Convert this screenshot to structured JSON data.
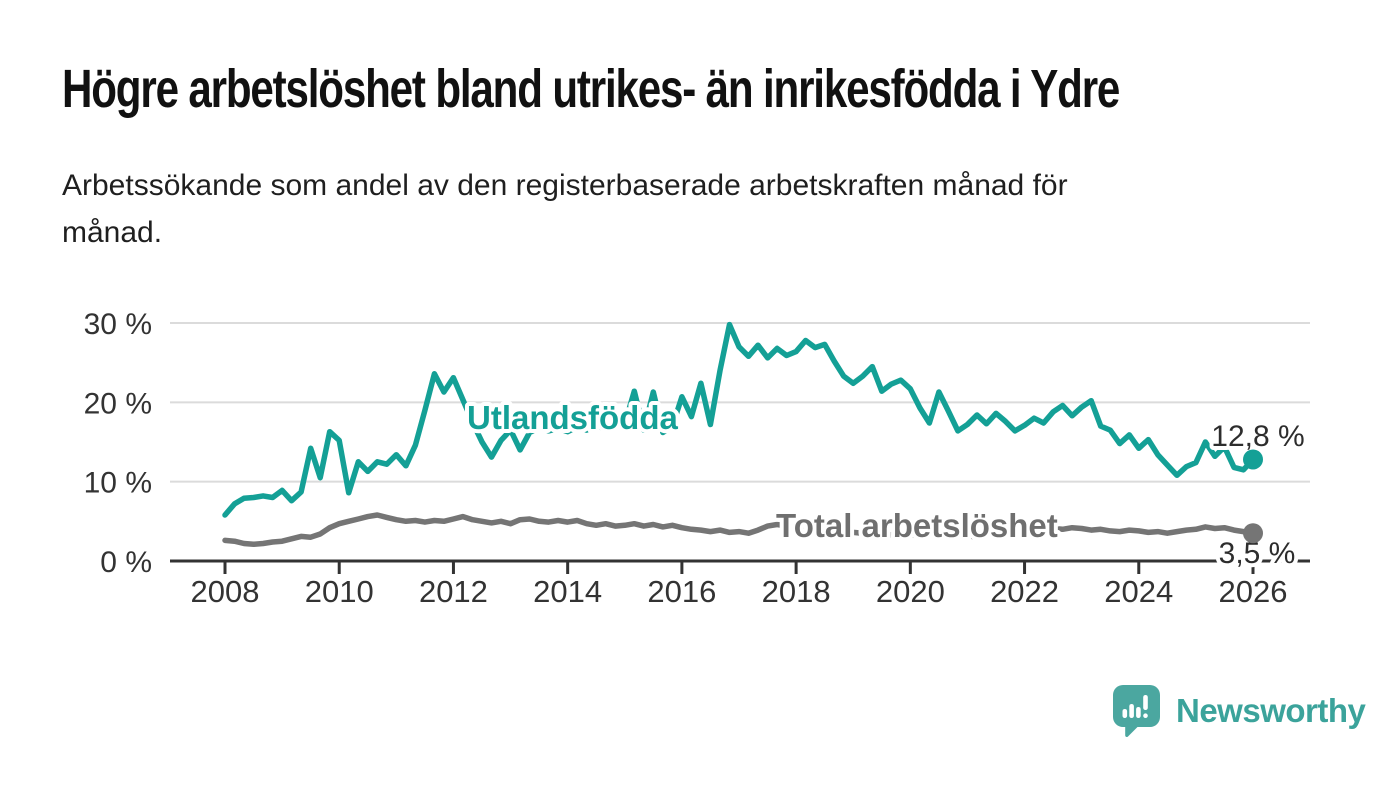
{
  "header": {
    "title": "Högre arbetslöshet bland utrikes- än inrikesfödda i Ydre",
    "subtitle_line1": "Arbetssökande som andel av den registerbaserade arbetskraften månad för",
    "subtitle_line2": "månad."
  },
  "branding": {
    "name": "Newsworthy",
    "icon": "speech-bubble-bar-chart-icon",
    "icon_color": "#4BA7A0",
    "text_color": "#3BA39B"
  },
  "chart_data": {
    "type": "line",
    "title": "Högre arbetslöshet bland utrikes- än inrikesfödda i Ydre",
    "subtitle": "Arbetssökande som andel av den registerbaserade arbetskraften månad för månad.",
    "xlabel": "",
    "ylabel": "",
    "y_unit": "%",
    "ylim": [
      0,
      30
    ],
    "y_ticks": [
      0,
      10,
      20,
      30
    ],
    "y_tick_labels": [
      "0 %",
      "10 %",
      "20 %",
      "30 %"
    ],
    "x_ticks": [
      2008,
      2010,
      2012,
      2014,
      2016,
      2018,
      2020,
      2022,
      2024,
      2026
    ],
    "x_tick_labels": [
      "2008",
      "2010",
      "2012",
      "2014",
      "2016",
      "2018",
      "2020",
      "2022",
      "2024",
      "2026"
    ],
    "grid": "horizontal",
    "legend_position": "inline-labels",
    "axis_color": "#333333",
    "grid_color": "#DBDBDB",
    "x_start": 2008,
    "x_step": 0.166667,
    "series": [
      {
        "name": "Utlandsfödda",
        "color": "#14A096",
        "end_label": "12,8 %",
        "end_value": 12.8,
        "values": [
          5.8,
          7.2,
          7.9,
          8.0,
          8.2,
          8.0,
          8.9,
          7.6,
          8.7,
          14.2,
          10.5,
          16.3,
          15.2,
          8.6,
          12.5,
          11.3,
          12.5,
          12.2,
          13.4,
          12.0,
          14.6,
          19.0,
          23.6,
          21.3,
          23.1,
          20.3,
          17.5,
          15.0,
          13.1,
          15.2,
          16.5,
          14.0,
          16.2,
          16.8,
          16.4,
          16.7,
          16.3,
          16.9,
          16.5,
          17.1,
          16.6,
          16.9,
          17.3,
          21.4,
          16.5,
          21.3,
          16.2,
          17.0,
          20.7,
          18.2,
          22.4,
          17.2,
          24.0,
          29.8,
          27.0,
          25.8,
          27.2,
          25.6,
          26.8,
          25.9,
          26.4,
          27.8,
          26.9,
          27.3,
          25.2,
          23.3,
          22.4,
          23.3,
          24.5,
          21.4,
          22.3,
          22.8,
          21.7,
          19.3,
          17.4,
          21.3,
          18.9,
          16.4,
          17.2,
          18.4,
          17.3,
          18.6,
          17.6,
          16.4,
          17.1,
          18.0,
          17.4,
          18.8,
          19.6,
          18.3,
          19.4,
          20.2,
          17.0,
          16.5,
          14.8,
          15.9,
          14.2,
          15.3,
          13.4,
          12.1,
          10.8,
          11.9,
          12.4,
          15.0,
          13.2,
          14.4,
          11.8,
          11.5,
          12.8
        ]
      },
      {
        "name": "Total arbetslöshet",
        "color": "#757575",
        "end_label": "3,5 %",
        "end_value": 3.5,
        "values": [
          2.6,
          2.5,
          2.2,
          2.1,
          2.2,
          2.4,
          2.5,
          2.8,
          3.1,
          3.0,
          3.4,
          4.2,
          4.7,
          5.0,
          5.3,
          5.6,
          5.8,
          5.5,
          5.2,
          5.0,
          5.1,
          4.9,
          5.1,
          5.0,
          5.3,
          5.6,
          5.2,
          5.0,
          4.8,
          5.0,
          4.7,
          5.2,
          5.3,
          5.0,
          4.9,
          5.1,
          4.9,
          5.1,
          4.7,
          4.5,
          4.7,
          4.4,
          4.5,
          4.7,
          4.4,
          4.6,
          4.3,
          4.5,
          4.2,
          4.0,
          3.9,
          3.7,
          3.9,
          3.6,
          3.7,
          3.5,
          3.9,
          4.4,
          4.6,
          4.4,
          4.5,
          4.3,
          4.4,
          4.1,
          3.9,
          3.7,
          3.6,
          3.5,
          3.7,
          3.4,
          3.3,
          3.4,
          3.3,
          3.2,
          3.6,
          3.5,
          3.3,
          3.1,
          3.2,
          3.0,
          3.4,
          3.6,
          3.5,
          3.7,
          3.8,
          4.0,
          3.9,
          4.1,
          4.0,
          4.2,
          4.1,
          3.9,
          4.0,
          3.8,
          3.7,
          3.9,
          3.8,
          3.6,
          3.7,
          3.5,
          3.7,
          3.9,
          4.0,
          4.3,
          4.1,
          4.2,
          3.9,
          3.7,
          3.5
        ]
      }
    ]
  }
}
